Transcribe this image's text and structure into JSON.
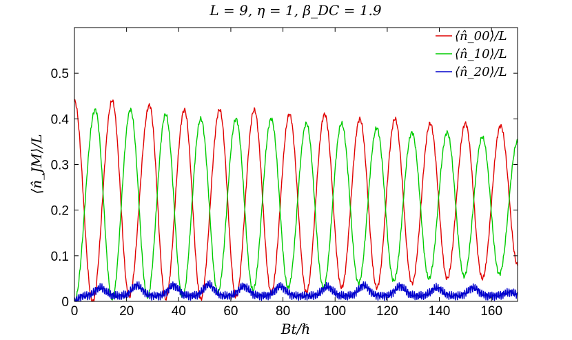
{
  "chart_data": {
    "type": "line",
    "title": "L = 9, η = 1, β_DC = 1.9",
    "xlabel": "Bt/ℏ",
    "ylabel": "⟨n̂_JM⟩/L",
    "xlim": [
      0,
      170
    ],
    "ylim": [
      0,
      0.6
    ],
    "xticks": [
      "0",
      "20",
      "40",
      "60",
      "80",
      "100",
      "120",
      "140",
      "160"
    ],
    "yticks": [
      "0",
      "0.1",
      "0.2",
      "0.3",
      "0.4",
      "0.5"
    ],
    "grid": false,
    "legend_position": "top-right",
    "series": [
      {
        "name": "⟨n̂_00⟩/L",
        "color": "#e00000",
        "period": 12.7,
        "mean": 0.22,
        "amplitude_start": 0.218,
        "amplitude_end": 0.165,
        "phase": "max_at_zero",
        "peaks": [
          {
            "x": 0,
            "y": 0.44
          },
          {
            "x": 14.5,
            "y": 0.44
          },
          {
            "x": 28.8,
            "y": 0.43
          },
          {
            "x": 42.2,
            "y": 0.42
          },
          {
            "x": 55.7,
            "y": 0.42
          },
          {
            "x": 69,
            "y": 0.42
          },
          {
            "x": 82.5,
            "y": 0.41
          },
          {
            "x": 96,
            "y": 0.41
          },
          {
            "x": 109.5,
            "y": 0.4
          },
          {
            "x": 123,
            "y": 0.4
          },
          {
            "x": 136.5,
            "y": 0.39
          },
          {
            "x": 150,
            "y": 0.39
          },
          {
            "x": 163.5,
            "y": 0.385
          }
        ],
        "troughs": [
          {
            "x": 7,
            "y": 0.0
          },
          {
            "x": 21,
            "y": 0.01
          },
          {
            "x": 35,
            "y": 0.005
          },
          {
            "x": 48.5,
            "y": 0.005
          },
          {
            "x": 62,
            "y": 0.01
          },
          {
            "x": 75.5,
            "y": 0.02
          },
          {
            "x": 89,
            "y": 0.02
          },
          {
            "x": 102.5,
            "y": 0.03
          },
          {
            "x": 116,
            "y": 0.03
          },
          {
            "x": 129.5,
            "y": 0.04
          },
          {
            "x": 143,
            "y": 0.05
          },
          {
            "x": 156.5,
            "y": 0.05
          },
          {
            "x": 170,
            "y": 0.08
          }
        ]
      },
      {
        "name": "⟨n̂_10⟩/L",
        "color": "#00cc00",
        "period": 12.7,
        "mean": 0.21,
        "amplitude_start": 0.21,
        "amplitude_end": 0.16,
        "phase": "min_at_zero",
        "peaks": [
          {
            "x": 8,
            "y": 0.42
          },
          {
            "x": 21.5,
            "y": 0.42
          },
          {
            "x": 35,
            "y": 0.41
          },
          {
            "x": 48.5,
            "y": 0.4
          },
          {
            "x": 62,
            "y": 0.4
          },
          {
            "x": 75.5,
            "y": 0.4
          },
          {
            "x": 89,
            "y": 0.39
          },
          {
            "x": 102.5,
            "y": 0.39
          },
          {
            "x": 116,
            "y": 0.38
          },
          {
            "x": 129.5,
            "y": 0.37
          },
          {
            "x": 143,
            "y": 0.37
          },
          {
            "x": 156.5,
            "y": 0.36
          }
        ],
        "troughs": [
          {
            "x": 0,
            "y": 0.0
          },
          {
            "x": 14.5,
            "y": 0.005
          },
          {
            "x": 28,
            "y": 0.01
          },
          {
            "x": 41.5,
            "y": 0.01
          },
          {
            "x": 55,
            "y": 0.02
          },
          {
            "x": 68.5,
            "y": 0.025
          },
          {
            "x": 82,
            "y": 0.03
          },
          {
            "x": 95.5,
            "y": 0.03
          },
          {
            "x": 109,
            "y": 0.04
          },
          {
            "x": 122.5,
            "y": 0.045
          },
          {
            "x": 136,
            "y": 0.05
          },
          {
            "x": 149.5,
            "y": 0.055
          },
          {
            "x": 163,
            "y": 0.06
          }
        ],
        "end_value": 0.35
      },
      {
        "name": "⟨n̂_20⟩/L",
        "color": "#0000cc",
        "baseline": 0.012,
        "bump_amplitude": 0.02,
        "bump_period": 13.7,
        "high_frequency_ripple": 0.006,
        "bumps": [
          {
            "x": 10,
            "y": 0.03
          },
          {
            "x": 24,
            "y": 0.035
          },
          {
            "x": 38,
            "y": 0.035
          },
          {
            "x": 51.5,
            "y": 0.037
          },
          {
            "x": 65,
            "y": 0.033
          },
          {
            "x": 79,
            "y": 0.033
          },
          {
            "x": 97,
            "y": 0.032
          },
          {
            "x": 111,
            "y": 0.035
          },
          {
            "x": 125,
            "y": 0.033
          },
          {
            "x": 139,
            "y": 0.03
          },
          {
            "x": 153,
            "y": 0.03
          },
          {
            "x": 167,
            "y": 0.02
          }
        ]
      }
    ]
  }
}
